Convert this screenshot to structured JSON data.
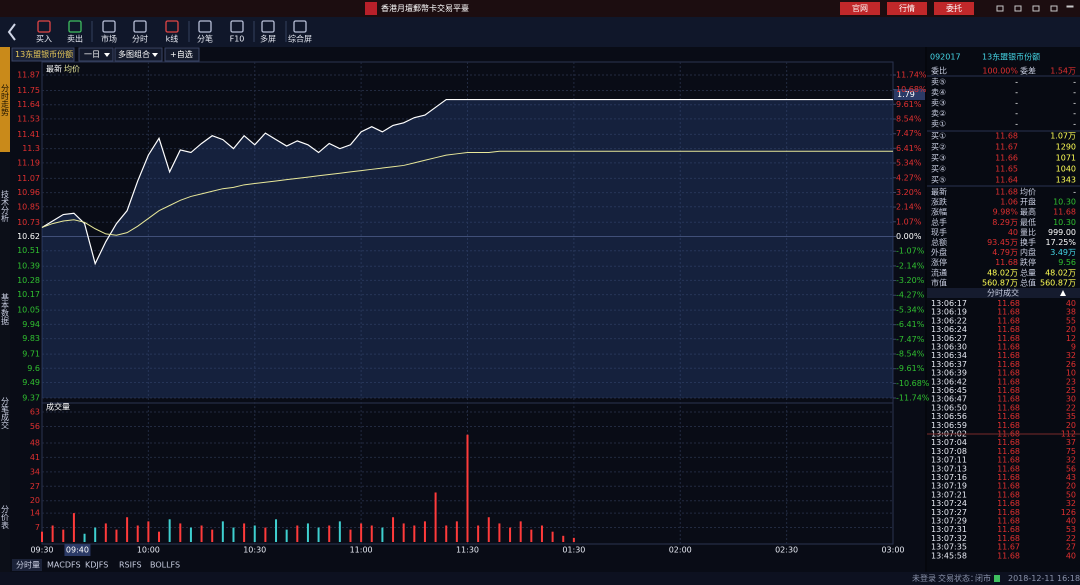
{
  "title_bar": {
    "title": "香港月壇郵幣卡交易平臺",
    "buttons": [
      "官网",
      "行情",
      "委托"
    ]
  },
  "toolbar": {
    "items": [
      "买入",
      "卖出",
      "市场",
      "分时",
      "k线",
      "分笔",
      "F10",
      "多屏",
      "综合屏"
    ]
  },
  "side_tabs": [
    "分时走势",
    "技术分析",
    "基本数据",
    "分笔成交",
    "分价表"
  ],
  "chart_header": {
    "symbol_tab": "13东盟银币份额",
    "period": "一日",
    "layout": "多图组合",
    "watch": "+自选"
  },
  "price_chart": {
    "type": "line",
    "series": [
      {
        "name": "最新",
        "color": "#ffffff",
        "values": [
          10.69,
          10.74,
          10.79,
          10.8,
          10.72,
          10.41,
          10.58,
          10.72,
          10.82,
          11.05,
          11.25,
          11.38,
          11.12,
          11.29,
          11.27,
          11.34,
          11.4,
          11.37,
          11.3,
          11.4,
          11.33,
          11.42,
          11.37,
          11.32,
          11.36,
          11.33,
          11.27,
          11.34,
          11.3,
          11.33,
          11.43,
          11.47,
          11.43,
          11.48,
          11.5,
          11.54,
          11.56,
          11.62,
          11.68,
          11.68,
          11.68,
          11.68,
          11.68,
          11.68,
          11.68,
          11.68,
          11.68,
          11.68,
          11.68,
          11.68,
          11.68,
          11.68,
          11.68,
          11.68,
          11.68,
          11.68,
          11.68,
          11.68,
          11.68,
          11.68,
          11.68,
          11.68,
          11.68,
          11.68,
          11.68,
          11.68,
          11.68,
          11.68,
          11.68,
          11.68,
          11.68,
          11.68,
          11.68,
          11.68,
          11.68,
          11.68,
          11.68,
          11.68,
          11.68,
          11.68,
          11.68
        ]
      },
      {
        "name": "均价",
        "color": "#e8e89a",
        "values": [
          10.69,
          10.72,
          10.74,
          10.75,
          10.73,
          10.68,
          10.64,
          10.63,
          10.65,
          10.7,
          10.76,
          10.82,
          10.86,
          10.9,
          10.93,
          10.95,
          10.97,
          10.99,
          11.0,
          11.02,
          11.03,
          11.04,
          11.05,
          11.06,
          11.07,
          11.08,
          11.09,
          11.1,
          11.11,
          11.12,
          11.13,
          11.14,
          11.15,
          11.16,
          11.17,
          11.19,
          11.21,
          11.23,
          11.25,
          11.26,
          11.27,
          11.27,
          11.27,
          11.28,
          11.28,
          11.28,
          11.28,
          11.28,
          11.28,
          11.28,
          11.28,
          11.28,
          11.28,
          11.28,
          11.28,
          11.28,
          11.28,
          11.28,
          11.28,
          11.28,
          11.28,
          11.28,
          11.28,
          11.28,
          11.28,
          11.28,
          11.28,
          11.28,
          11.28,
          11.28,
          11.28,
          11.28,
          11.28,
          11.28,
          11.28,
          11.28,
          11.28,
          11.28,
          11.28,
          11.28,
          11.28
        ]
      }
    ],
    "ylim": [
      9.37,
      11.87
    ],
    "yticks": [
      11.87,
      11.75,
      11.64,
      11.53,
      11.41,
      11.3,
      11.19,
      11.07,
      10.96,
      10.85,
      10.73,
      10.62,
      10.51,
      10.39,
      10.28,
      10.17,
      10.05,
      9.94,
      9.83,
      9.71,
      9.6,
      9.49,
      9.37
    ],
    "pct_lim": [
      -11.74,
      11.74
    ],
    "pct_ticks": [
      {
        "value": 11.74,
        "label": "11.74%"
      },
      {
        "value": 10.68,
        "label": "10.68%"
      },
      {
        "value": 9.61,
        "label": "9.61%"
      },
      {
        "value": 8.54,
        "label": "8.54%"
      },
      {
        "value": 7.47,
        "label": "7.47%"
      },
      {
        "value": 6.41,
        "label": "6.41%"
      },
      {
        "value": 5.34,
        "label": "5.34%"
      },
      {
        "value": 4.27,
        "label": "4.27%"
      },
      {
        "value": 3.2,
        "label": "3.20%"
      },
      {
        "value": 2.14,
        "label": "2.14%"
      },
      {
        "value": 1.07,
        "label": "1.07%"
      },
      {
        "value": 0,
        "label": "0.00%"
      },
      {
        "value": -1.07,
        "label": "-1.07%"
      },
      {
        "value": -2.14,
        "label": "-2.14%"
      },
      {
        "value": -3.2,
        "label": "-3.20%"
      },
      {
        "value": -4.27,
        "label": "-4.27%"
      },
      {
        "value": -5.34,
        "label": "-5.34%"
      },
      {
        "value": -6.41,
        "label": "-6.41%"
      },
      {
        "value": -7.47,
        "label": "-7.47%"
      },
      {
        "value": -8.54,
        "label": "-8.54%"
      },
      {
        "value": -9.61,
        "label": "-9.61%"
      },
      {
        "value": -10.68,
        "label": "-10.68%"
      },
      {
        "value": -11.74,
        "label": "-11.74%"
      }
    ],
    "cursor_label": "1.79"
  },
  "volume_chart": {
    "type": "bar",
    "title": "成交量",
    "values": [
      5,
      8,
      6,
      14,
      4,
      7,
      9,
      6,
      12,
      8,
      10,
      5,
      11,
      9,
      7,
      8,
      6,
      10,
      7,
      9,
      8,
      7,
      11,
      6,
      8,
      9,
      7,
      8,
      10,
      6,
      9,
      8,
      7,
      12,
      9,
      8,
      10,
      24,
      8,
      10,
      52,
      8,
      12,
      9,
      7,
      10,
      6,
      8,
      5,
      3,
      2,
      0,
      0,
      0,
      0,
      0,
      0,
      0,
      0,
      0,
      0,
      0,
      0,
      0,
      0,
      0,
      0,
      0,
      0,
      0,
      0,
      0,
      0,
      0,
      0,
      0,
      0,
      0,
      0,
      0,
      0
    ],
    "ylim": [
      0,
      63
    ],
    "yticks": [
      63,
      56,
      48,
      41,
      34,
      27,
      20,
      14,
      7
    ],
    "up_color": "#ff3b3b",
    "down_color": "#3fd0d0"
  },
  "time_axis": {
    "ticks": [
      "09:30",
      "10:00",
      "10:30",
      "11:00",
      "11:30",
      "01:30",
      "02:00",
      "02:30",
      "03:00"
    ],
    "cursor": "09:40"
  },
  "bottom_tabs": [
    "分时量",
    "MACDFS",
    "KDJFS",
    "RSIFS",
    "BOLLFS"
  ],
  "quote": {
    "code": "092017",
    "name": "13东盟银币份额",
    "ratio": [
      "委比",
      "100.00%",
      "委差",
      "1.54万"
    ],
    "sells": [
      [
        "卖⑤",
        "-",
        "-"
      ],
      [
        "卖④",
        "-",
        "-"
      ],
      [
        "卖③",
        "-",
        "-"
      ],
      [
        "卖②",
        "-",
        "-"
      ],
      [
        "卖①",
        "-",
        "-"
      ]
    ],
    "buys": [
      [
        "买①",
        "11.68",
        "1.07万"
      ],
      [
        "买②",
        "11.67",
        "1290"
      ],
      [
        "买③",
        "11.66",
        "1071"
      ],
      [
        "买④",
        "11.65",
        "1040"
      ],
      [
        "买⑤",
        "11.64",
        "1343"
      ]
    ],
    "stats": [
      [
        "最新",
        "11.68",
        "均价",
        "-"
      ],
      [
        "涨跌",
        "1.06",
        "开盘",
        "10.30"
      ],
      [
        "涨幅",
        "9.98%",
        "最高",
        "11.68"
      ],
      [
        "总手",
        "8.29万",
        "最低",
        "10.30"
      ],
      [
        "现手",
        "40",
        "量比",
        "999.00"
      ],
      [
        "总额",
        "93.45万",
        "换手",
        "17.25%"
      ],
      [
        "外盘",
        "4.79万",
        "内盘",
        "3.49万"
      ],
      [
        "涨停",
        "11.68",
        "跌停",
        "9.56"
      ],
      [
        "流通",
        "48.02万",
        "总量",
        "48.02万"
      ],
      [
        "市值",
        "560.87万",
        "总值",
        "560.87万"
      ]
    ],
    "trades_title": "分时成交",
    "trades": [
      [
        "13:06:17",
        "11.68",
        "40"
      ],
      [
        "13:06:19",
        "11.68",
        "38"
      ],
      [
        "13:06:22",
        "11.68",
        "55"
      ],
      [
        "13:06:24",
        "11.68",
        "20"
      ],
      [
        "13:06:27",
        "11.68",
        "12"
      ],
      [
        "13:06:30",
        "11.68",
        "9"
      ],
      [
        "13:06:34",
        "11.68",
        "32"
      ],
      [
        "13:06:37",
        "11.68",
        "26"
      ],
      [
        "13:06:39",
        "11.68",
        "10"
      ],
      [
        "13:06:42",
        "11.68",
        "23"
      ],
      [
        "13:06:45",
        "11.68",
        "25"
      ],
      [
        "13:06:47",
        "11.68",
        "30"
      ],
      [
        "13:06:50",
        "11.68",
        "22"
      ],
      [
        "13:06:56",
        "11.68",
        "35"
      ],
      [
        "13:06:59",
        "11.68",
        "20"
      ],
      [
        "13:07:02",
        "11.68",
        "112"
      ],
      [
        "13:07:04",
        "11.68",
        "37"
      ],
      [
        "13:07:08",
        "11.68",
        "75"
      ],
      [
        "13:07:11",
        "11.68",
        "32"
      ],
      [
        "13:07:13",
        "11.68",
        "56"
      ],
      [
        "13:07:16",
        "11.68",
        "43"
      ],
      [
        "13:07:19",
        "11.68",
        "20"
      ],
      [
        "13:07:21",
        "11.68",
        "50"
      ],
      [
        "13:07:24",
        "11.68",
        "32"
      ],
      [
        "13:07:27",
        "11.68",
        "126"
      ],
      [
        "13:07:29",
        "11.68",
        "40"
      ],
      [
        "13:07:31",
        "11.68",
        "53"
      ],
      [
        "13:07:32",
        "11.68",
        "22"
      ],
      [
        "13:07:35",
        "11.67",
        "27"
      ],
      [
        "13:45:58",
        "11.68",
        "40"
      ]
    ]
  },
  "status": {
    "login": "未登录",
    "state_label": "交易状态：",
    "state": "闭市",
    "datetime": "2018-12-11 16:18:29"
  }
}
